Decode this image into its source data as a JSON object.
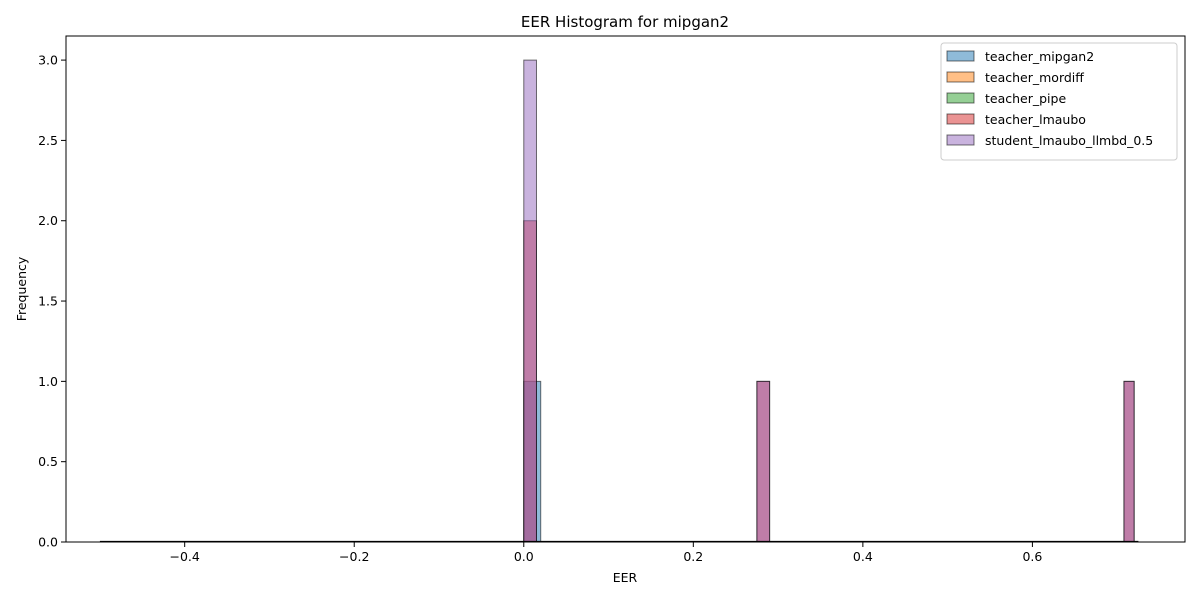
{
  "chart_data": {
    "type": "bar",
    "title": "EER Histogram for mipgan2",
    "xlabel": "EER",
    "ylabel": "Frequency",
    "xlim": [
      -0.54,
      0.78
    ],
    "ylim": [
      0,
      3.15
    ],
    "xticks": [
      -0.4,
      -0.2,
      0.0,
      0.2,
      0.4,
      0.6
    ],
    "xtick_labels": [
      "−0.4",
      "−0.2",
      "0.0",
      "0.2",
      "0.4",
      "0.6"
    ],
    "yticks": [
      0.0,
      0.5,
      1.0,
      1.5,
      2.0,
      2.5,
      3.0
    ],
    "ytick_labels": [
      "0.0",
      "0.5",
      "1.0",
      "1.5",
      "2.0",
      "2.5",
      "3.0"
    ],
    "grid": false,
    "legend_position": "top-right",
    "bin_range": [
      -0.5,
      0.725
    ],
    "bin_count": 50,
    "series": [
      {
        "name": "teacher_mipgan2",
        "color": "#1f77b4",
        "bars": [
          {
            "x0": 0.0,
            "x1": 0.02,
            "count": 1
          }
        ]
      },
      {
        "name": "teacher_mordiff",
        "color": "#ff7f0e",
        "bars": []
      },
      {
        "name": "teacher_pipe",
        "color": "#2ca02c",
        "bars": []
      },
      {
        "name": "teacher_lmaubo",
        "color": "#d62728",
        "bars": [
          {
            "x0": 0.0,
            "x1": 0.015,
            "count": 2
          },
          {
            "x0": 0.275,
            "x1": 0.29,
            "count": 1
          },
          {
            "x0": 0.708,
            "x1": 0.72,
            "count": 1
          }
        ]
      },
      {
        "name": "student_lmaubo_llmbd_0.5",
        "color": "#9467bd",
        "bars": [
          {
            "x0": 0.0,
            "x1": 0.015,
            "count": 3
          },
          {
            "x0": 0.275,
            "x1": 0.29,
            "count": 1
          },
          {
            "x0": 0.708,
            "x1": 0.72,
            "count": 1
          }
        ]
      }
    ]
  }
}
